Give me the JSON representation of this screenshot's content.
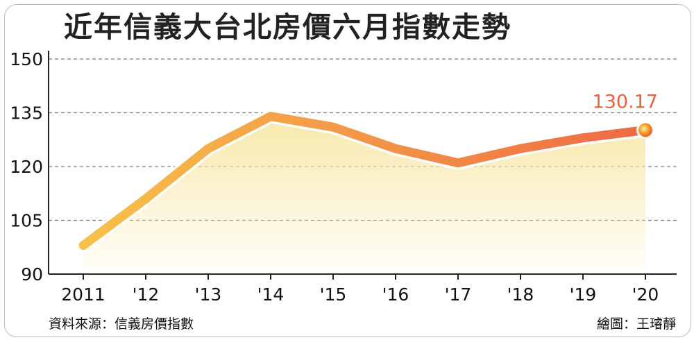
{
  "chart_data": {
    "type": "line",
    "title": "近年信義大台北房價六月指數走勢",
    "categories": [
      "2011",
      "'12",
      "'13",
      "'14",
      "'15",
      "'16",
      "'17",
      "'18",
      "'19",
      "'20"
    ],
    "values": [
      98,
      111,
      125,
      134,
      131,
      125,
      121,
      125,
      128,
      130.17
    ],
    "y_ticks": [
      "150",
      "135",
      "120",
      "105",
      "90"
    ],
    "ylim": [
      90,
      150
    ],
    "last_label": "130.17",
    "area_fill": true,
    "grid": "horizontal dashed",
    "colors": {
      "line_start": "#f7c14a",
      "line_end": "#ee6a45",
      "label": "#e9623a",
      "area": "#f8e7a6"
    }
  },
  "footer": {
    "source": "資料來源：信義房價指數",
    "credit": "繪圖：王璿靜"
  }
}
